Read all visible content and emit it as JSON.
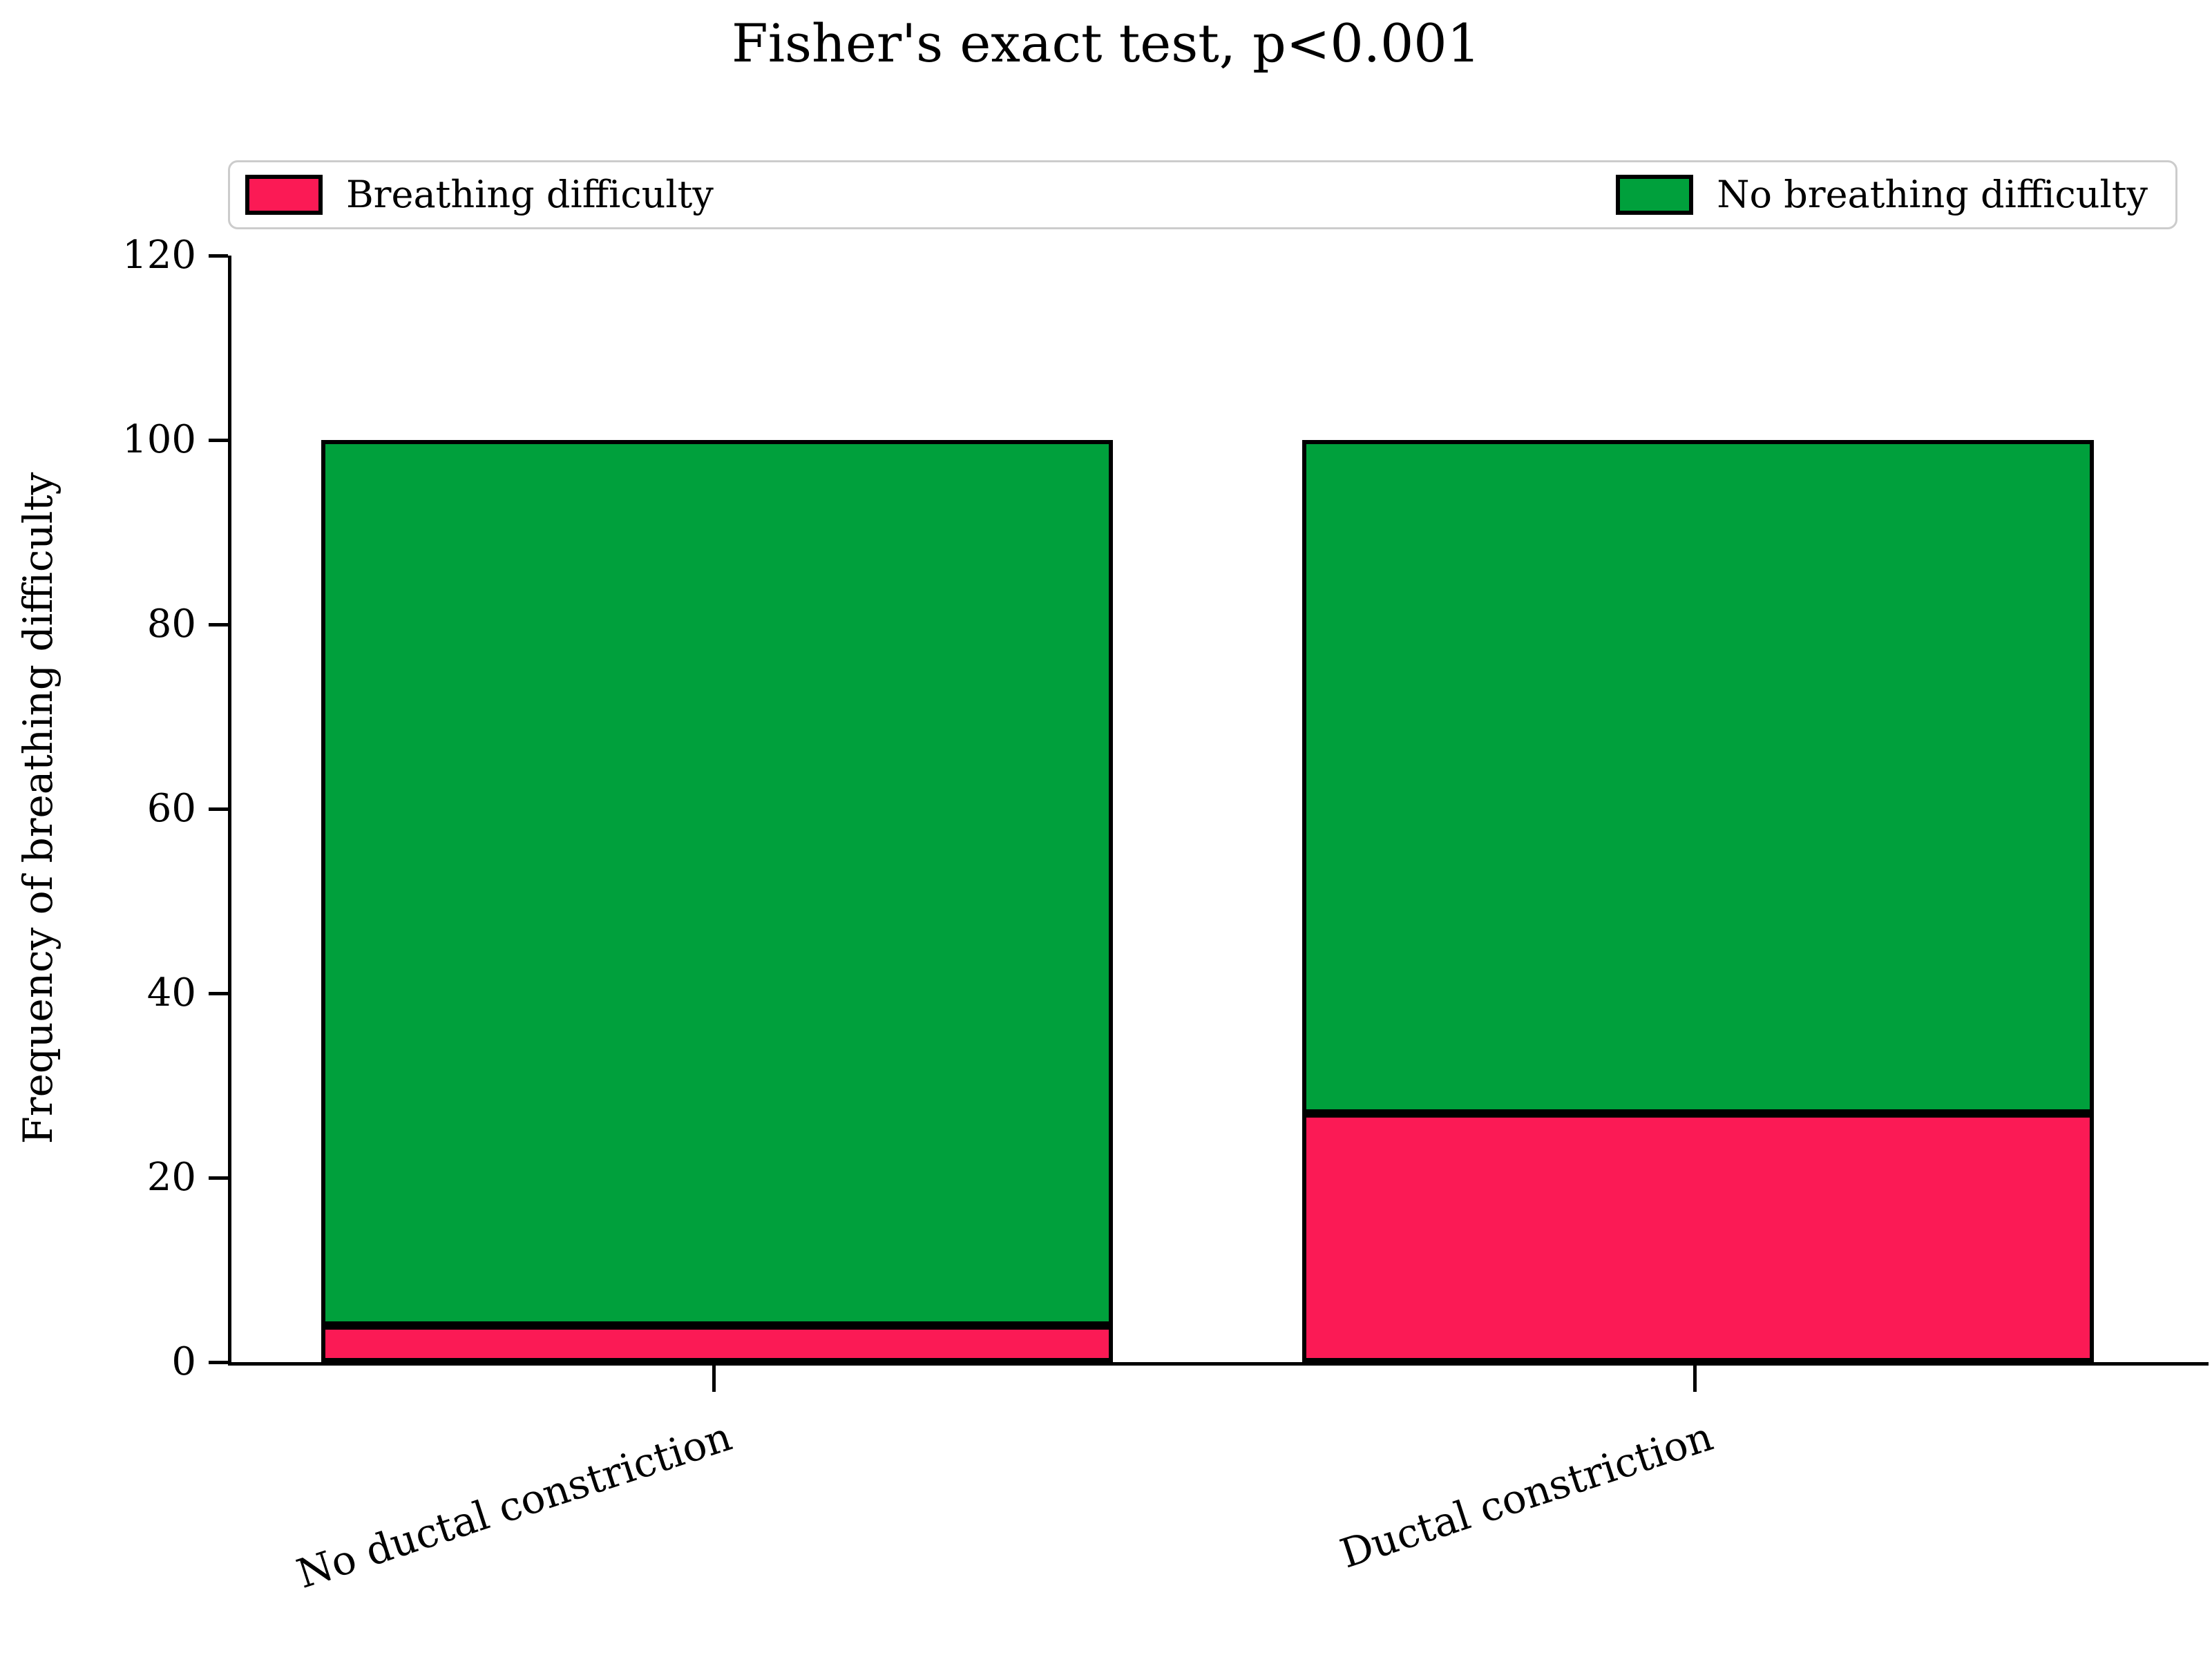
{
  "chart_data": {
    "type": "bar",
    "stacked": true,
    "title": "Fisher's exact test, p<0.001",
    "xlabel": "",
    "ylabel": "Frequency of breathing difficulty",
    "categories": [
      "No ductal constriction",
      "Ductal constriction"
    ],
    "series": [
      {
        "name": "Breathing difficulty",
        "color": "#FB1A55",
        "values": [
          4,
          27
        ]
      },
      {
        "name": "No breathing difficulty",
        "color": "#00A03C",
        "values": [
          96,
          73
        ]
      }
    ],
    "totals": [
      100,
      100
    ],
    "ylim": [
      0,
      120
    ],
    "yticks": [
      0,
      20,
      40,
      60,
      80,
      100,
      120
    ],
    "bar_edge_color": "#000000",
    "legend_position": "top, inside frame: first item upper-left, second item upper-right",
    "legend_border_color": "#cccccc",
    "grid": false,
    "x_tick_label_rotation_deg": 18
  }
}
